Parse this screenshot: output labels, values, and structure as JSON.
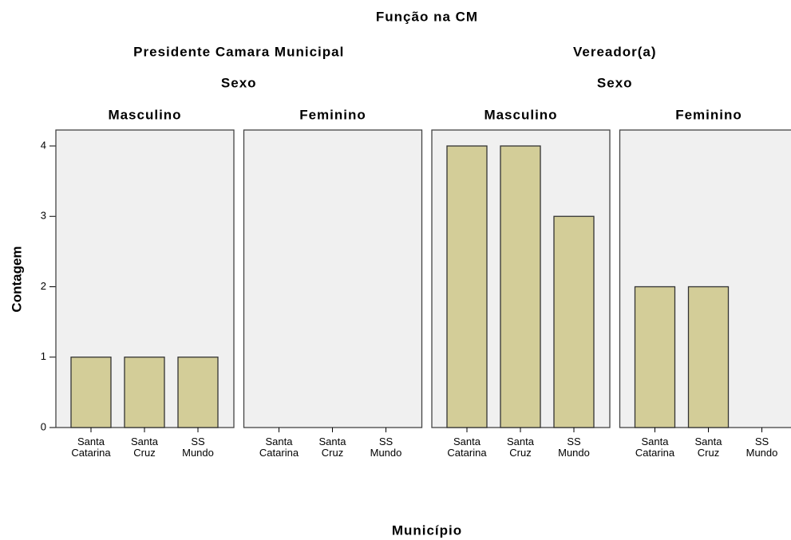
{
  "chart_data": {
    "type": "bar",
    "title": "Função na CM",
    "xlabel": "Município",
    "ylabel": "Contagem",
    "categories": [
      "Santa Catarina",
      "Santa Cruz",
      "SS Mundo"
    ],
    "ylim": [
      0,
      4
    ],
    "yticks": [
      0,
      1,
      2,
      3,
      4
    ],
    "color": "#d3cd98",
    "panel_background": "#f0f0f0",
    "groups": [
      {
        "name": "Presidente Camara Municipal",
        "facet_title": "Sexo",
        "panels": [
          {
            "name": "Masculino",
            "values": [
              1,
              1,
              1
            ]
          },
          {
            "name": "Feminino",
            "values": [
              0,
              0,
              0
            ]
          }
        ]
      },
      {
        "name": "Vereador(a)",
        "facet_title": "Sexo",
        "panels": [
          {
            "name": "Masculino",
            "values": [
              4,
              4,
              3
            ]
          },
          {
            "name": "Feminino",
            "values": [
              2,
              2,
              0
            ]
          }
        ]
      }
    ]
  }
}
